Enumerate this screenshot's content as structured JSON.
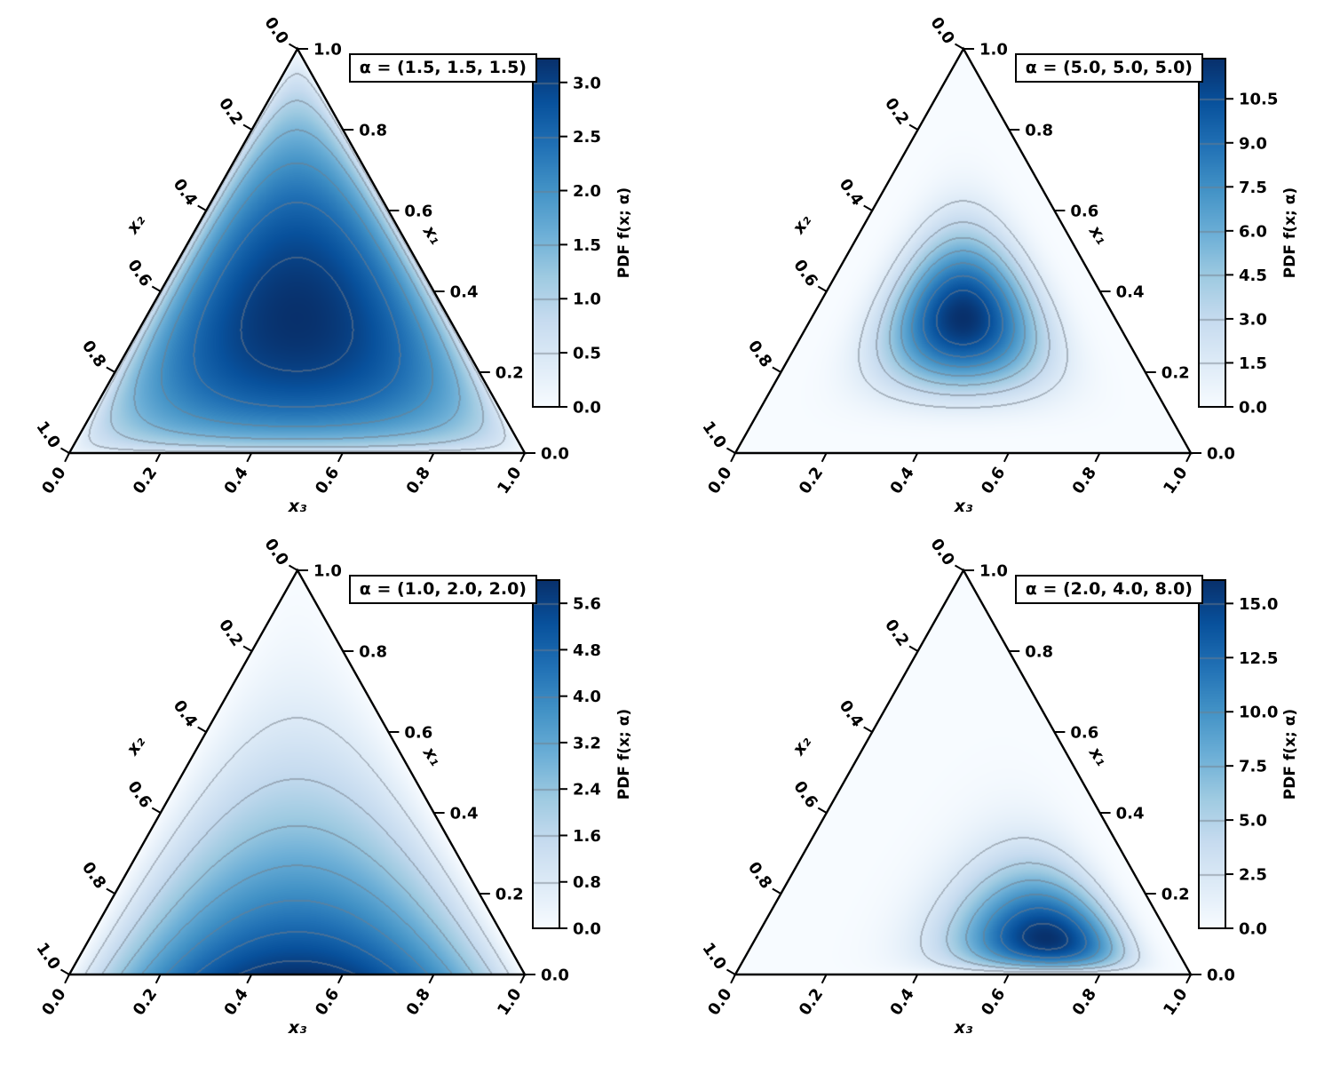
{
  "figure": {
    "background": "#ffffff",
    "text_color": "#000000",
    "contour_line_color": "#737c87"
  },
  "shared": {
    "axis_tick_labels": [
      "0.0",
      "0.2",
      "0.4",
      "0.6",
      "0.8",
      "1.0"
    ],
    "axis_labels": {
      "left": "x₂",
      "right": "x₁",
      "bottom": "x₃"
    },
    "colorbar_label": "PDF f(x; α)",
    "colormap": "Blues",
    "colormap_stops": [
      "#f7fbff",
      "#deebf7",
      "#c6dbef",
      "#9ecae1",
      "#6baed6",
      "#4292c6",
      "#2171b5",
      "#08519c",
      "#08306b"
    ]
  },
  "chart_data": [
    {
      "type": "ternary_contour",
      "distribution": "Dirichlet",
      "alpha": [
        1.5,
        1.5,
        1.5
      ],
      "legend_label": "α = (1.5, 1.5, 1.5)",
      "pdf_max": 3.22,
      "colorbar_ticks": [
        0.0,
        0.5,
        1.0,
        1.5,
        2.0,
        2.5,
        3.0
      ],
      "contour_levels": [
        0.5,
        1.0,
        1.5,
        2.0,
        2.5,
        3.0
      ]
    },
    {
      "type": "ternary_contour",
      "distribution": "Dirichlet",
      "alpha": [
        5.0,
        5.0,
        5.0
      ],
      "legend_label": "α = (5.0, 5.0, 5.0)",
      "pdf_max": 11.87,
      "colorbar_ticks": [
        0.0,
        1.5,
        3.0,
        4.5,
        6.0,
        7.5,
        9.0,
        10.5
      ],
      "contour_levels": [
        1.5,
        3.0,
        4.5,
        6.0,
        7.5,
        9.0,
        10.5
      ]
    },
    {
      "type": "ternary_contour",
      "distribution": "Dirichlet",
      "alpha": [
        1.0,
        2.0,
        2.0
      ],
      "legend_label": "α = (1.0, 2.0, 2.0)",
      "pdf_max": 6.0,
      "colorbar_ticks": [
        0.0,
        0.8,
        1.6,
        2.4,
        3.2,
        4.0,
        4.8,
        5.6
      ],
      "contour_levels": [
        0.8,
        1.6,
        2.4,
        3.2,
        4.0,
        4.8,
        5.6
      ]
    },
    {
      "type": "ternary_contour",
      "distribution": "Dirichlet",
      "alpha": [
        2.0,
        4.0,
        8.0
      ],
      "legend_label": "α = (2.0, 4.0, 8.0)",
      "pdf_max": 16.08,
      "colorbar_ticks": [
        0.0,
        2.5,
        5.0,
        7.5,
        10.0,
        12.5,
        15.0
      ],
      "contour_levels": [
        2.5,
        5.0,
        7.5,
        10.0,
        12.5,
        15.0
      ]
    }
  ]
}
